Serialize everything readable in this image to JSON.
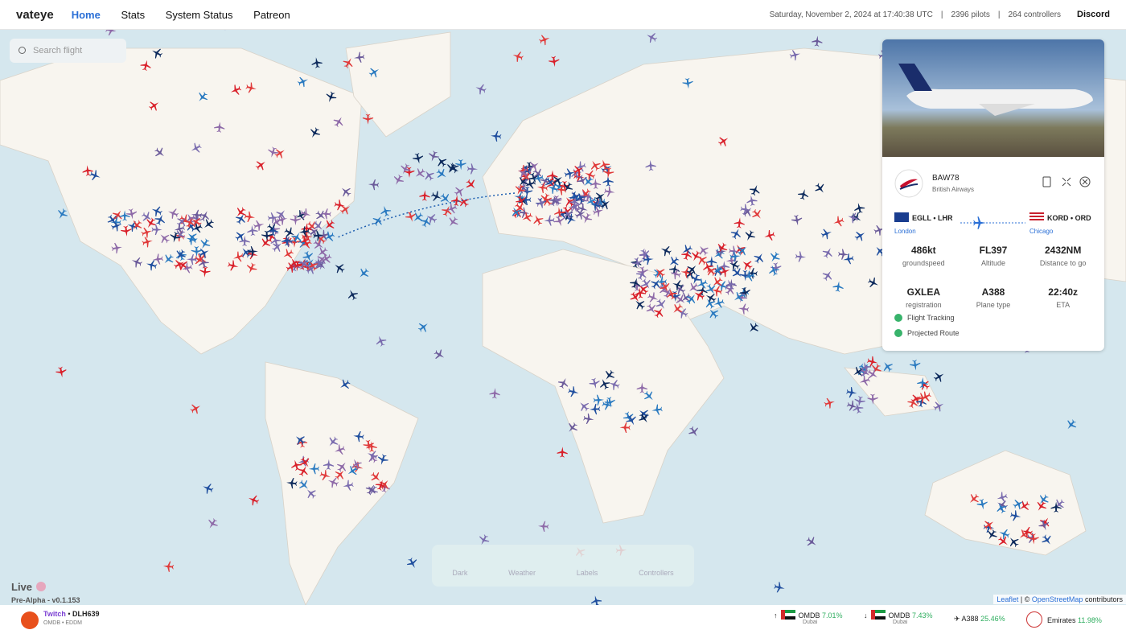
{
  "header": {
    "brand": "vateye",
    "nav": [
      "Home",
      "Stats",
      "System Status",
      "Patreon"
    ],
    "datetime": "Saturday, November 2, 2024 at 17:40:38 UTC",
    "pilots": "2396 pilots",
    "controllers": "264 controllers",
    "discord": "Discord"
  },
  "search": {
    "placeholder": "Search flight"
  },
  "flight_card": {
    "callsign": "BAW78",
    "airline": "British Airways",
    "origin": {
      "codes": "EGLL • LHR",
      "city": "London"
    },
    "destination": {
      "codes": "KORD • ORD",
      "city": "Chicago"
    },
    "stats": [
      {
        "value": "486kt",
        "label": "groundspeed"
      },
      {
        "value": "FL397",
        "label": "Altitude"
      },
      {
        "value": "2432NM",
        "label": "Distance to go"
      },
      {
        "value": "GXLEA",
        "label": "registration"
      },
      {
        "value": "A388",
        "label": "Plane type"
      },
      {
        "value": "22:40z",
        "label": "ETA"
      }
    ],
    "toggles": [
      "Flight Tracking",
      "Projected Route"
    ]
  },
  "map_controls": [
    "Dark",
    "Weather",
    "Labels",
    "Controllers"
  ],
  "status": {
    "live": "Live",
    "version": "Pre-Alpha - v0.1.153"
  },
  "attribution": {
    "leaflet": "Leaflet",
    "middle": "| ©",
    "osm": "OpenStreetMap",
    "end": "contributors"
  },
  "footer": {
    "stream": {
      "platform": "Twitch",
      "separator": "•",
      "callsign": "DLH639",
      "route": "OMDB • EDDM"
    },
    "departures": {
      "airport": "OMDB",
      "percent": "7.01%",
      "city": "Dubai"
    },
    "arrivals": {
      "airport": "OMDB",
      "percent": "7.43%",
      "city": "Dubai"
    },
    "aircraft": {
      "type": "A388",
      "percent": "25.46%"
    },
    "airline": {
      "name": "Emirates",
      "percent": "11.98%"
    }
  }
}
